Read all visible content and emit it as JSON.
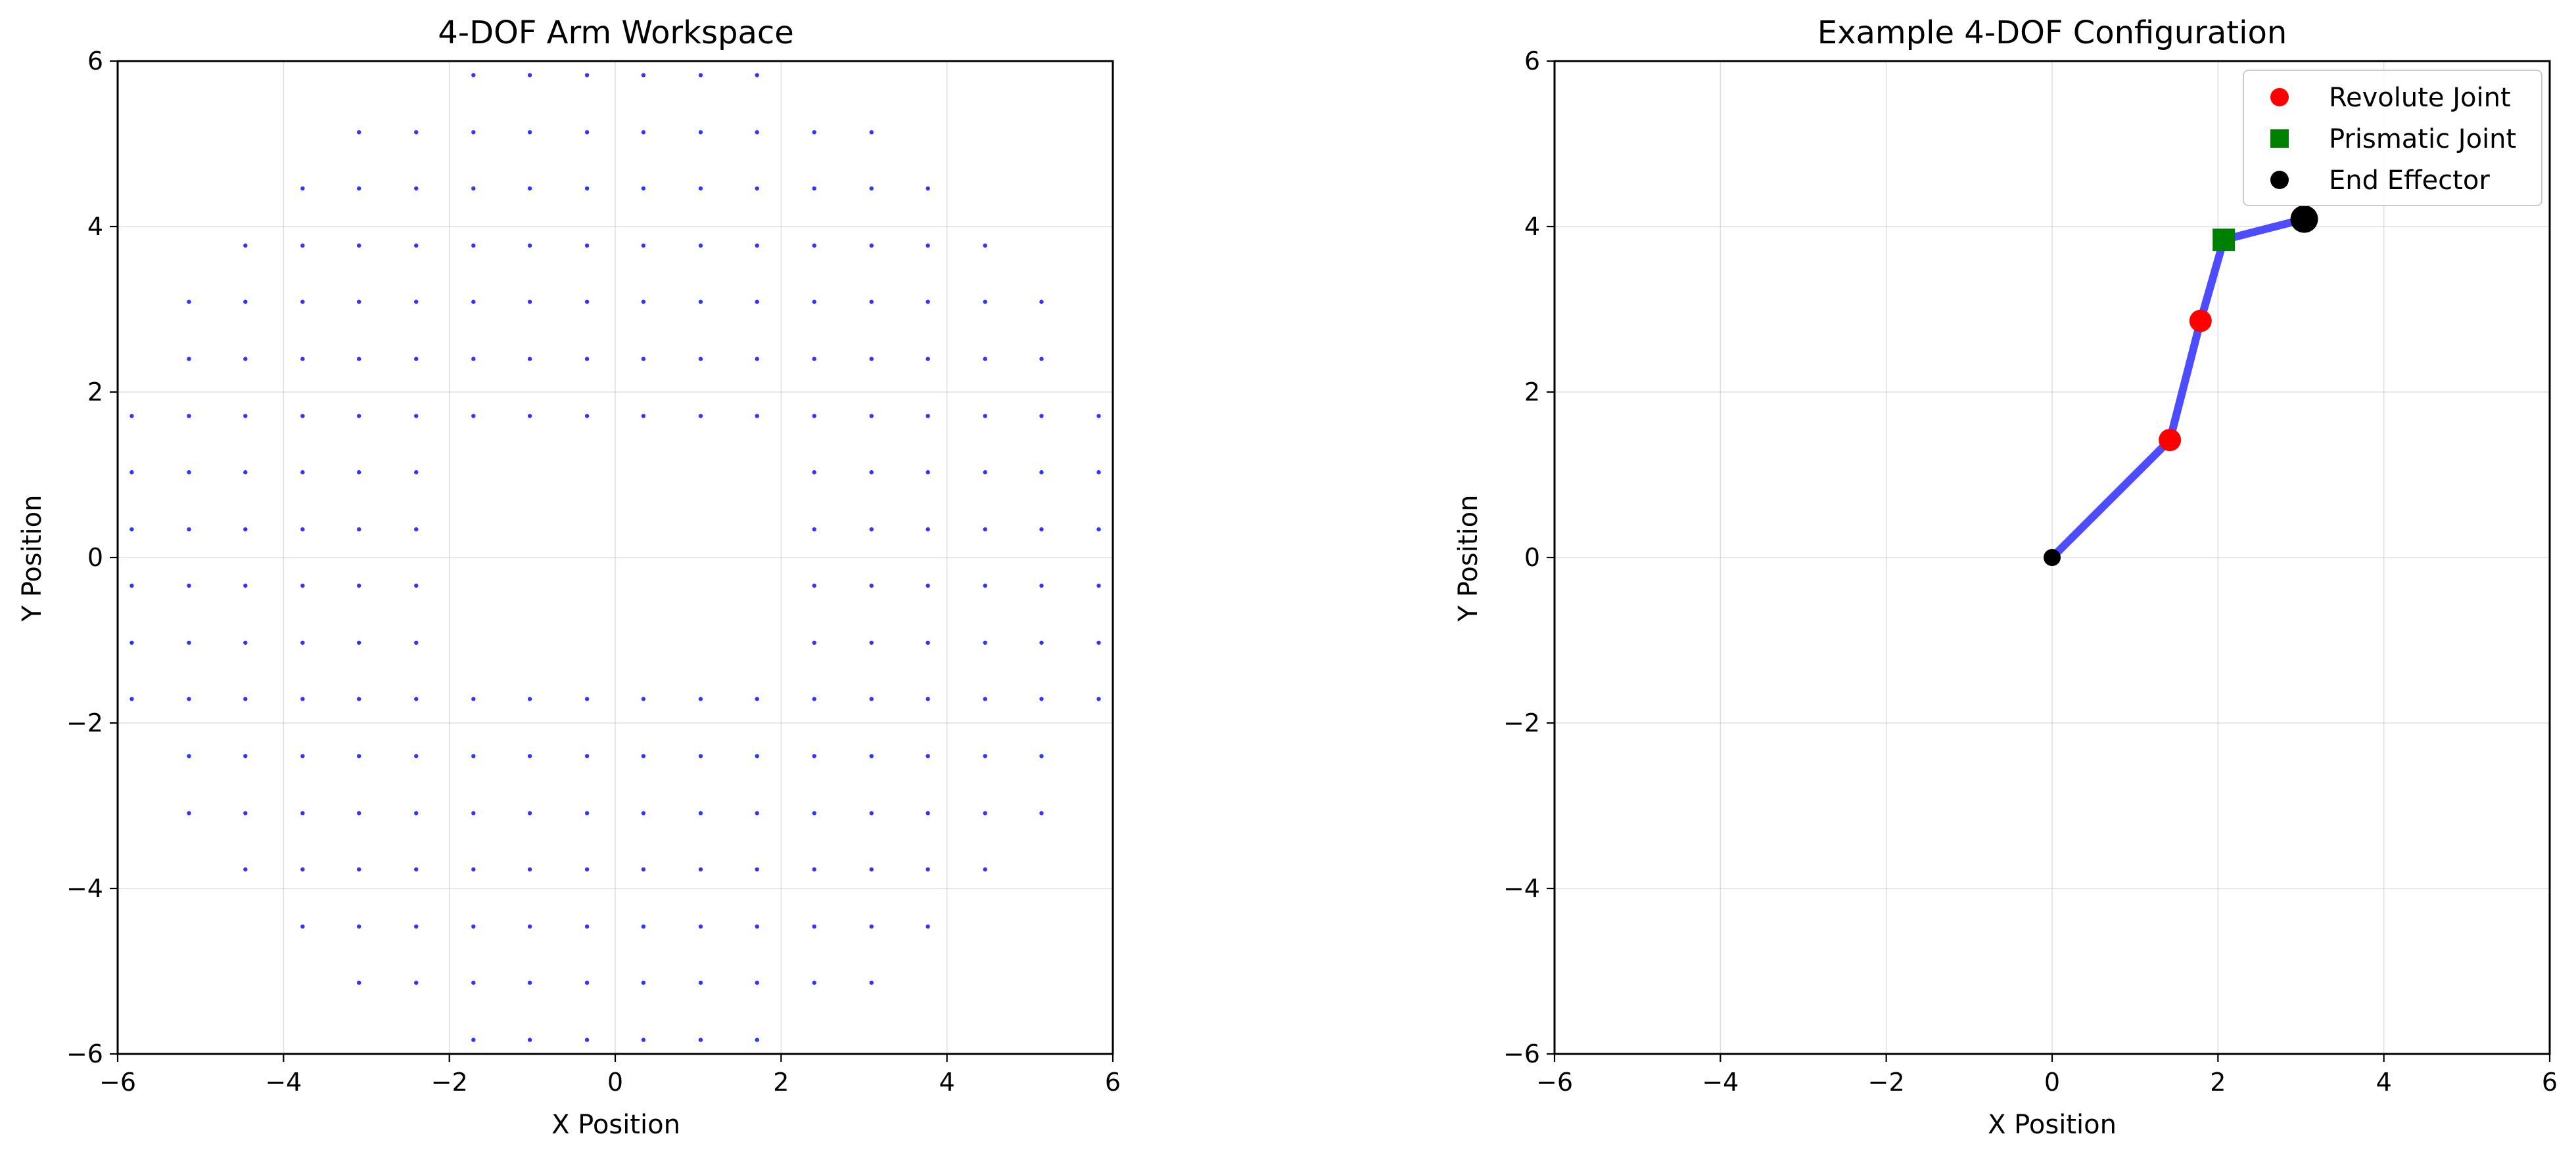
{
  "chart_data": [
    {
      "type": "scatter",
      "title": "4-DOF Arm Workspace",
      "xlabel": "X Position",
      "ylabel": "Y Position",
      "xlim": [
        -6,
        6
      ],
      "ylim": [
        -6,
        6
      ],
      "xticks": [
        -6,
        -4,
        -2,
        0,
        2,
        4,
        6
      ],
      "yticks": [
        -6,
        -4,
        -2,
        0,
        2,
        4,
        6
      ],
      "tick_labels": [
        "−6",
        "−4",
        "−2",
        "0",
        "2",
        "4",
        "6"
      ],
      "grid": true,
      "point_color": "#3333ff",
      "grid_columns": [
        -5.83,
        -5.14,
        -4.46,
        -3.77,
        -3.09,
        -2.4,
        -1.71,
        -1.03,
        -0.34,
        0.34,
        1.03,
        1.71,
        2.4,
        3.09,
        3.77,
        4.46,
        5.14,
        5.83
      ],
      "grid_rows": [
        -5.83,
        -5.14,
        -4.46,
        -3.77,
        -3.09,
        -2.4,
        -1.71,
        -1.03,
        -0.34,
        0.34,
        1.03,
        1.71,
        2.4,
        3.09,
        3.77,
        4.46,
        5.14,
        5.83
      ],
      "reach_outer": 6.1,
      "reach_inner_x": 1.75,
      "reach_inner_y": 1.1
    },
    {
      "type": "line",
      "title": "Example 4-DOF Configuration",
      "xlabel": "X Position",
      "ylabel": "Y Position",
      "xlim": [
        -6,
        6
      ],
      "ylim": [
        -6,
        6
      ],
      "xticks": [
        -6,
        -4,
        -2,
        0,
        2,
        4,
        6
      ],
      "yticks": [
        -6,
        -4,
        -2,
        0,
        2,
        4,
        6
      ],
      "tick_labels": [
        "−6",
        "−4",
        "−2",
        "0",
        "2",
        "4",
        "6"
      ],
      "grid": true,
      "legend_position": "top-right",
      "arm": {
        "color": "#4d4dff",
        "points": [
          [
            0,
            0
          ],
          [
            1.42,
            1.42
          ],
          [
            1.79,
            2.86
          ],
          [
            2.07,
            3.84
          ],
          [
            3.04,
            4.09
          ]
        ]
      },
      "base": {
        "x": 0,
        "y": 0,
        "color": "#000000"
      },
      "revolute_joints": [
        [
          1.42,
          1.42
        ],
        [
          1.79,
          2.86
        ]
      ],
      "prismatic_joints": [
        [
          2.07,
          3.84
        ]
      ],
      "end_effector": {
        "x": 3.04,
        "y": 4.09
      },
      "series": [
        {
          "name": "Revolute Joint",
          "marker": "circle",
          "color": "#ff0000"
        },
        {
          "name": "Prismatic Joint",
          "marker": "square",
          "color": "#008000"
        },
        {
          "name": "End Effector",
          "marker": "circle",
          "color": "#000000"
        }
      ]
    }
  ]
}
